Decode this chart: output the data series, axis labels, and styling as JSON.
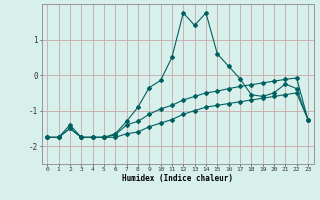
{
  "title": "",
  "xlabel": "Humidex (Indice chaleur)",
  "bg_color": "#d8f0ec",
  "grid_color": "#c8a8a8",
  "line_color": "#006060",
  "xlim": [
    -0.5,
    23.5
  ],
  "ylim": [
    -2.5,
    2.0
  ],
  "yticks": [
    -2,
    -1,
    0,
    1
  ],
  "xticks": [
    0,
    1,
    2,
    3,
    4,
    5,
    6,
    7,
    8,
    9,
    10,
    11,
    12,
    13,
    14,
    15,
    16,
    17,
    18,
    19,
    20,
    21,
    22,
    23
  ],
  "line1_x": [
    0,
    1,
    2,
    3,
    4,
    5,
    6,
    7,
    8,
    9,
    10,
    11,
    12,
    13,
    14,
    15,
    16,
    17,
    18,
    19,
    20,
    21,
    22,
    23
  ],
  "line1_y": [
    -1.75,
    -1.75,
    -1.5,
    -1.75,
    -1.75,
    -1.75,
    -1.75,
    -1.65,
    -1.6,
    -1.45,
    -1.35,
    -1.25,
    -1.1,
    -1.0,
    -0.9,
    -0.85,
    -0.8,
    -0.75,
    -0.7,
    -0.65,
    -0.6,
    -0.55,
    -0.5,
    -1.25
  ],
  "line2_x": [
    0,
    1,
    2,
    3,
    4,
    5,
    6,
    7,
    8,
    9,
    10,
    11,
    12,
    13,
    14,
    15,
    16,
    17,
    18,
    19,
    20,
    21,
    22,
    23
  ],
  "line2_y": [
    -1.75,
    -1.75,
    -1.4,
    -1.75,
    -1.75,
    -1.75,
    -1.65,
    -1.3,
    -0.9,
    -0.35,
    -0.15,
    0.5,
    1.75,
    1.4,
    1.75,
    0.6,
    0.25,
    -0.1,
    -0.55,
    -0.6,
    -0.5,
    -0.25,
    -0.38,
    -1.25
  ],
  "line3_x": [
    0,
    1,
    2,
    3,
    4,
    5,
    6,
    7,
    8,
    9,
    10,
    11,
    12,
    13,
    14,
    15,
    16,
    17,
    18,
    19,
    20,
    21,
    22,
    23
  ],
  "line3_y": [
    -1.75,
    -1.75,
    -1.5,
    -1.75,
    -1.75,
    -1.75,
    -1.68,
    -1.4,
    -1.3,
    -1.1,
    -0.95,
    -0.85,
    -0.7,
    -0.6,
    -0.5,
    -0.45,
    -0.38,
    -0.32,
    -0.27,
    -0.22,
    -0.17,
    -0.12,
    -0.08,
    -1.25
  ]
}
